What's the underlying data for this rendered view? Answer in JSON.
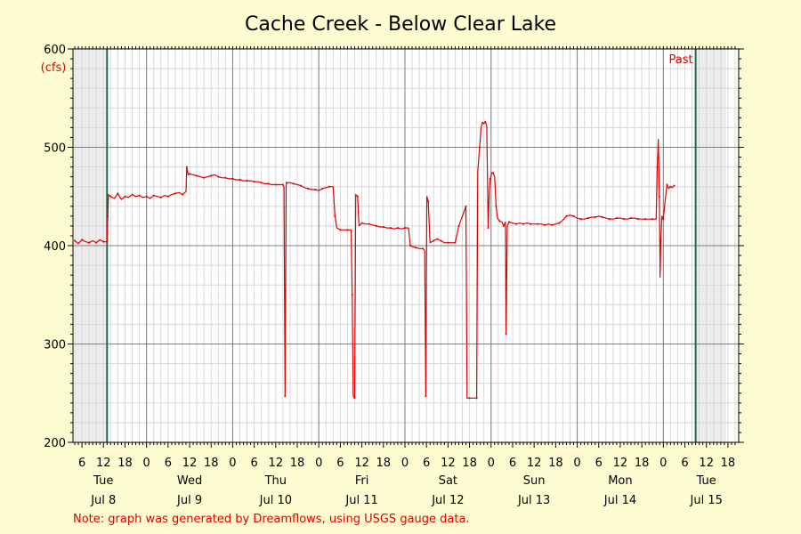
{
  "chart_data": {
    "type": "line",
    "title": "Cache Creek - Below Clear Lake",
    "ylabel": "(cfs)",
    "ylim": [
      200,
      600
    ],
    "y_ticks": [
      200,
      300,
      400,
      500,
      600
    ],
    "hour_tick_labels": [
      "6",
      "12",
      "18",
      "0"
    ],
    "hour_ticks": [
      {
        "x": 6,
        "label": "6"
      },
      {
        "x": 12,
        "label": "12"
      },
      {
        "x": 18,
        "label": "18"
      },
      {
        "x": 24,
        "label": "0"
      },
      {
        "x": 30,
        "label": "6"
      },
      {
        "x": 36,
        "label": "12"
      },
      {
        "x": 42,
        "label": "18"
      },
      {
        "x": 48,
        "label": "0"
      },
      {
        "x": 54,
        "label": "6"
      },
      {
        "x": 60,
        "label": "12"
      },
      {
        "x": 66,
        "label": "18"
      },
      {
        "x": 72,
        "label": "0"
      },
      {
        "x": 78,
        "label": "6"
      },
      {
        "x": 84,
        "label": "12"
      },
      {
        "x": 90,
        "label": "18"
      },
      {
        "x": 96,
        "label": "0"
      },
      {
        "x": 102,
        "label": "6"
      },
      {
        "x": 108,
        "label": "12"
      },
      {
        "x": 114,
        "label": "18"
      },
      {
        "x": 120,
        "label": "0"
      },
      {
        "x": 126,
        "label": "6"
      },
      {
        "x": 132,
        "label": "12"
      },
      {
        "x": 138,
        "label": "18"
      },
      {
        "x": 144,
        "label": "0"
      },
      {
        "x": 150,
        "label": "6"
      },
      {
        "x": 156,
        "label": "12"
      },
      {
        "x": 162,
        "label": "18"
      },
      {
        "x": 168,
        "label": "0"
      },
      {
        "x": 174,
        "label": "6"
      },
      {
        "x": 180,
        "label": "12"
      },
      {
        "x": 186,
        "label": "18"
      }
    ],
    "day_labels": [
      {
        "x": 12,
        "weekday": "Tue",
        "date": "Jul 8"
      },
      {
        "x": 36,
        "weekday": "Wed",
        "date": "Jul 9"
      },
      {
        "x": 60,
        "weekday": "Thu",
        "date": "Jul 10"
      },
      {
        "x": 84,
        "weekday": "Fri",
        "date": "Jul 11"
      },
      {
        "x": 108,
        "weekday": "Sat",
        "date": "Jul 12"
      },
      {
        "x": 132,
        "weekday": "Sun",
        "date": "Jul 13"
      },
      {
        "x": 156,
        "weekday": "Mon",
        "date": "Jul 14"
      },
      {
        "x": 180,
        "weekday": "Tue",
        "date": "Jul 15"
      }
    ],
    "past_label": "Past",
    "grid": true,
    "shaded_regions": [
      [
        4,
        13
      ],
      [
        177,
        185.5
      ]
    ],
    "markers": [
      13,
      177
    ],
    "series": [
      {
        "color": "#e00000",
        "points": [
          [
            4,
            405
          ],
          [
            5,
            402
          ],
          [
            6,
            406
          ],
          [
            7,
            404
          ],
          [
            8,
            403
          ],
          [
            9,
            405
          ],
          [
            10,
            403
          ],
          [
            11,
            406
          ],
          [
            12,
            404
          ],
          [
            13,
            404
          ],
          [
            13.2,
            430
          ],
          [
            13.4,
            452
          ],
          [
            14,
            450
          ],
          [
            15,
            448
          ],
          [
            16,
            453
          ],
          [
            17,
            447
          ],
          [
            18,
            450
          ],
          [
            19,
            449
          ],
          [
            20,
            452
          ],
          [
            21,
            450
          ],
          [
            22,
            451
          ],
          [
            23,
            449
          ],
          [
            24,
            450
          ],
          [
            25,
            448
          ],
          [
            26,
            451
          ],
          [
            27,
            450
          ],
          [
            28,
            449
          ],
          [
            29,
            451
          ],
          [
            30,
            450
          ],
          [
            31,
            452
          ],
          [
            32,
            453
          ],
          [
            33,
            454
          ],
          [
            34,
            452
          ],
          [
            35,
            455
          ],
          [
            35.2,
            480
          ],
          [
            35.6,
            472
          ],
          [
            36,
            473
          ],
          [
            37,
            472
          ],
          [
            38,
            471
          ],
          [
            39,
            470
          ],
          [
            40,
            469
          ],
          [
            41,
            470
          ],
          [
            42,
            471
          ],
          [
            43,
            472
          ],
          [
            44,
            470
          ],
          [
            45,
            469
          ],
          [
            46,
            469
          ],
          [
            47,
            468
          ],
          [
            48,
            468
          ],
          [
            49,
            467
          ],
          [
            50,
            467
          ],
          [
            51,
            466
          ],
          [
            52,
            466
          ],
          [
            53,
            466
          ],
          [
            54,
            465
          ],
          [
            55,
            465
          ],
          [
            56,
            464
          ],
          [
            57,
            463
          ],
          [
            58,
            463
          ],
          [
            59,
            462
          ],
          [
            60,
            462
          ],
          [
            61,
            462
          ],
          [
            62,
            462
          ],
          [
            62.3,
            460
          ],
          [
            62.6,
            247
          ],
          [
            62.9,
            460
          ],
          [
            63,
            464
          ],
          [
            64,
            464
          ],
          [
            65,
            463
          ],
          [
            66,
            462
          ],
          [
            67,
            461
          ],
          [
            68,
            459
          ],
          [
            69,
            458
          ],
          [
            70,
            457
          ],
          [
            71,
            457
          ],
          [
            72,
            456
          ],
          [
            73,
            458
          ],
          [
            74,
            459
          ],
          [
            75,
            460
          ],
          [
            76,
            460
          ],
          [
            76.5,
            430
          ],
          [
            77,
            418
          ],
          [
            78,
            416
          ],
          [
            79,
            416
          ],
          [
            80,
            416
          ],
          [
            81,
            416
          ],
          [
            81.3,
            350
          ],
          [
            81.6,
            247
          ],
          [
            82,
            245
          ],
          [
            82.3,
            452
          ],
          [
            82.8,
            450
          ],
          [
            83.2,
            420
          ],
          [
            84,
            423
          ],
          [
            85,
            422
          ],
          [
            86,
            422
          ],
          [
            87,
            421
          ],
          [
            88,
            420
          ],
          [
            89,
            419
          ],
          [
            90,
            419
          ],
          [
            91,
            418
          ],
          [
            92,
            418
          ],
          [
            93,
            417
          ],
          [
            94,
            418
          ],
          [
            95,
            417
          ],
          [
            96,
            418
          ],
          [
            97,
            418
          ],
          [
            97.5,
            400
          ],
          [
            98,
            399
          ],
          [
            99,
            398
          ],
          [
            100,
            397
          ],
          [
            101,
            397
          ],
          [
            101.5,
            395
          ],
          [
            101.8,
            247
          ],
          [
            102.1,
            450
          ],
          [
            102.5,
            445
          ],
          [
            103,
            403
          ],
          [
            104,
            405
          ],
          [
            105,
            407
          ],
          [
            106,
            405
          ],
          [
            107,
            403
          ],
          [
            108,
            403
          ],
          [
            109,
            403
          ],
          [
            110,
            403
          ],
          [
            110.5,
            412
          ],
          [
            111,
            420
          ],
          [
            112,
            430
          ],
          [
            113,
            440
          ],
          [
            113.3,
            245
          ],
          [
            114,
            245
          ],
          [
            115,
            245
          ],
          [
            116,
            245
          ],
          [
            116.3,
            475
          ],
          [
            116.8,
            500
          ],
          [
            117.2,
            520
          ],
          [
            117.6,
            525
          ],
          [
            118,
            524
          ],
          [
            118.4,
            526
          ],
          [
            118.8,
            522
          ],
          [
            119.2,
            418
          ],
          [
            119.5,
            457
          ],
          [
            119.8,
            468
          ],
          [
            120.2,
            474
          ],
          [
            120.6,
            474
          ],
          [
            121,
            470
          ],
          [
            121.4,
            440
          ],
          [
            121.8,
            428
          ],
          [
            122.4,
            425
          ],
          [
            123,
            424
          ],
          [
            123.5,
            420
          ],
          [
            124,
            424
          ],
          [
            124.2,
            310
          ],
          [
            124.5,
            420
          ],
          [
            125,
            424
          ],
          [
            126,
            423
          ],
          [
            127,
            422
          ],
          [
            128,
            423
          ],
          [
            129,
            422
          ],
          [
            130,
            423
          ],
          [
            131,
            422
          ],
          [
            132,
            422
          ],
          [
            133,
            422
          ],
          [
            134,
            422
          ],
          [
            135,
            421
          ],
          [
            136,
            422
          ],
          [
            137,
            421
          ],
          [
            138,
            422
          ],
          [
            139,
            423
          ],
          [
            140,
            426
          ],
          [
            141,
            430
          ],
          [
            142,
            431
          ],
          [
            143,
            430
          ],
          [
            144,
            428
          ],
          [
            145,
            427
          ],
          [
            146,
            427
          ],
          [
            147,
            428
          ],
          [
            148,
            429
          ],
          [
            149,
            429
          ],
          [
            150,
            430
          ],
          [
            151,
            429
          ],
          [
            152,
            428
          ],
          [
            153,
            427
          ],
          [
            154,
            427
          ],
          [
            155,
            428
          ],
          [
            156,
            428
          ],
          [
            157,
            427
          ],
          [
            158,
            427
          ],
          [
            159,
            428
          ],
          [
            160,
            428
          ],
          [
            161,
            427
          ],
          [
            162,
            427
          ],
          [
            163,
            427
          ],
          [
            164,
            427
          ],
          [
            165,
            427
          ],
          [
            166,
            427
          ],
          [
            166.3,
            480
          ],
          [
            166.6,
            508
          ],
          [
            166.9,
            450
          ],
          [
            167.1,
            368
          ],
          [
            167.3,
            405
          ],
          [
            167.6,
            430
          ],
          [
            168,
            427
          ],
          [
            168.5,
            445
          ],
          [
            169,
            462
          ],
          [
            169.5,
            458
          ],
          [
            170,
            460
          ],
          [
            170.5,
            459
          ],
          [
            171,
            461
          ]
        ]
      }
    ]
  },
  "footer": {
    "note": "Note: graph was generated by Dreamflows, using USGS gauge data."
  }
}
